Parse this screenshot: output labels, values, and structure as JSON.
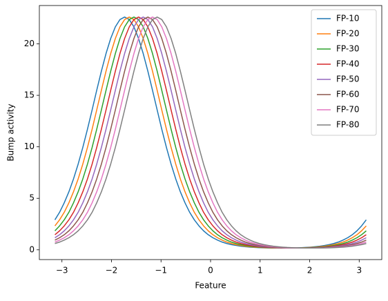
{
  "chart_data": {
    "type": "line",
    "xlabel": "Feature",
    "ylabel": "Bump activity",
    "x": [
      -3.142,
      -3.048,
      -2.954,
      -2.86,
      -2.767,
      -2.673,
      -2.579,
      -2.485,
      -2.391,
      -2.298,
      -2.204,
      -2.11,
      -2.016,
      -1.922,
      -1.829,
      -1.735,
      -1.641,
      -1.547,
      -1.454,
      -1.36,
      -1.266,
      -1.172,
      -1.078,
      -0.985,
      -0.891,
      -0.797,
      -0.703,
      -0.61,
      -0.516,
      -0.422,
      -0.328,
      -0.234,
      -0.141,
      -0.047,
      0.047,
      0.141,
      0.234,
      0.328,
      0.422,
      0.516,
      0.61,
      0.703,
      0.797,
      0.891,
      0.985,
      1.078,
      1.172,
      1.266,
      1.36,
      1.454,
      1.547,
      1.641,
      1.735,
      1.829,
      1.922,
      2.016,
      2.11,
      2.204,
      2.298,
      2.391,
      2.485,
      2.579,
      2.673,
      2.767,
      2.86,
      2.954,
      3.048,
      3.142
    ],
    "series": [
      {
        "name": "FP-10",
        "color": "#1f77b4",
        "values": [
          2.91,
          3.64,
          4.56,
          5.63,
          6.88,
          8.32,
          9.94,
          11.71,
          13.58,
          15.49,
          17.35,
          19.06,
          20.52,
          21.65,
          22.36,
          22.6,
          22.36,
          21.65,
          20.52,
          19.06,
          17.35,
          15.49,
          13.58,
          11.71,
          9.94,
          8.32,
          6.88,
          5.63,
          4.56,
          3.64,
          2.91,
          2.32,
          1.84,
          1.46,
          1.17,
          0.94,
          0.75,
          0.61,
          0.5,
          0.42,
          0.35,
          0.3,
          0.26,
          0.23,
          0.21,
          0.19,
          0.18,
          0.17,
          0.17,
          0.17,
          0.17,
          0.18,
          0.19,
          0.21,
          0.23,
          0.26,
          0.3,
          0.35,
          0.42,
          0.5,
          0.61,
          0.75,
          0.94,
          1.17,
          1.46,
          1.84,
          2.32,
          2.91
        ]
      },
      {
        "name": "FP-20",
        "color": "#ff7f0e",
        "values": [
          2.32,
          2.91,
          3.64,
          4.56,
          5.63,
          6.88,
          8.32,
          9.94,
          11.71,
          13.58,
          15.49,
          17.35,
          19.06,
          20.52,
          21.65,
          22.36,
          22.6,
          22.36,
          21.65,
          20.52,
          19.06,
          17.35,
          15.49,
          13.58,
          11.71,
          9.94,
          8.32,
          6.88,
          5.63,
          4.56,
          3.64,
          2.91,
          2.32,
          1.84,
          1.46,
          1.17,
          0.94,
          0.75,
          0.61,
          0.5,
          0.42,
          0.35,
          0.3,
          0.26,
          0.23,
          0.21,
          0.19,
          0.18,
          0.17,
          0.17,
          0.17,
          0.17,
          0.18,
          0.19,
          0.21,
          0.23,
          0.26,
          0.3,
          0.35,
          0.42,
          0.5,
          0.61,
          0.75,
          0.94,
          1.17,
          1.46,
          1.84,
          2.32
        ]
      },
      {
        "name": "FP-30",
        "color": "#2ca02c",
        "values": [
          1.84,
          2.32,
          2.91,
          3.64,
          4.56,
          5.63,
          6.88,
          8.32,
          9.94,
          11.71,
          13.58,
          15.49,
          17.35,
          19.06,
          20.52,
          21.65,
          22.36,
          22.6,
          22.36,
          21.65,
          20.52,
          19.06,
          17.35,
          15.49,
          13.58,
          11.71,
          9.94,
          8.32,
          6.88,
          5.63,
          4.56,
          3.64,
          2.91,
          2.32,
          1.84,
          1.46,
          1.17,
          0.94,
          0.75,
          0.61,
          0.5,
          0.42,
          0.35,
          0.3,
          0.26,
          0.23,
          0.21,
          0.19,
          0.18,
          0.17,
          0.17,
          0.17,
          0.17,
          0.18,
          0.19,
          0.21,
          0.23,
          0.26,
          0.3,
          0.35,
          0.42,
          0.5,
          0.61,
          0.75,
          0.94,
          1.17,
          1.46,
          1.84
        ]
      },
      {
        "name": "FP-40",
        "color": "#d62728",
        "values": [
          1.46,
          1.84,
          2.32,
          2.91,
          3.64,
          4.56,
          5.63,
          6.88,
          8.32,
          9.94,
          11.71,
          13.58,
          15.49,
          17.35,
          19.06,
          20.52,
          21.65,
          22.36,
          22.6,
          22.36,
          21.65,
          20.52,
          19.06,
          17.35,
          15.49,
          13.58,
          11.71,
          9.94,
          8.32,
          6.88,
          5.63,
          4.56,
          3.64,
          2.91,
          2.32,
          1.84,
          1.46,
          1.17,
          0.94,
          0.75,
          0.61,
          0.5,
          0.42,
          0.35,
          0.3,
          0.26,
          0.23,
          0.21,
          0.19,
          0.18,
          0.17,
          0.17,
          0.17,
          0.17,
          0.18,
          0.19,
          0.21,
          0.23,
          0.26,
          0.3,
          0.35,
          0.42,
          0.5,
          0.61,
          0.75,
          0.94,
          1.17,
          1.46
        ]
      },
      {
        "name": "FP-50",
        "color": "#9467bd",
        "values": [
          1.17,
          1.46,
          1.84,
          2.32,
          2.91,
          3.64,
          4.56,
          5.63,
          6.88,
          8.32,
          9.94,
          11.71,
          13.58,
          15.49,
          17.35,
          19.06,
          20.52,
          21.65,
          22.36,
          22.6,
          22.36,
          21.65,
          20.52,
          19.06,
          17.35,
          15.49,
          13.58,
          11.71,
          9.94,
          8.32,
          6.88,
          5.63,
          4.56,
          3.64,
          2.91,
          2.32,
          1.84,
          1.46,
          1.17,
          0.94,
          0.75,
          0.61,
          0.5,
          0.42,
          0.35,
          0.3,
          0.26,
          0.23,
          0.21,
          0.19,
          0.18,
          0.17,
          0.17,
          0.17,
          0.17,
          0.18,
          0.19,
          0.21,
          0.23,
          0.26,
          0.3,
          0.35,
          0.42,
          0.5,
          0.61,
          0.75,
          0.94,
          1.17
        ]
      },
      {
        "name": "FP-60",
        "color": "#8c564b",
        "values": [
          0.94,
          1.17,
          1.46,
          1.84,
          2.32,
          2.91,
          3.64,
          4.56,
          5.63,
          6.88,
          8.32,
          9.94,
          11.71,
          13.58,
          15.49,
          17.35,
          19.06,
          20.52,
          21.65,
          22.36,
          22.6,
          22.36,
          21.65,
          20.52,
          19.06,
          17.35,
          15.49,
          13.58,
          11.71,
          9.94,
          8.32,
          6.88,
          5.63,
          4.56,
          3.64,
          2.91,
          2.32,
          1.84,
          1.46,
          1.17,
          0.94,
          0.75,
          0.61,
          0.5,
          0.42,
          0.35,
          0.3,
          0.26,
          0.23,
          0.21,
          0.19,
          0.18,
          0.17,
          0.17,
          0.17,
          0.17,
          0.18,
          0.19,
          0.21,
          0.23,
          0.26,
          0.3,
          0.35,
          0.42,
          0.5,
          0.61,
          0.75,
          0.94
        ]
      },
      {
        "name": "FP-70",
        "color": "#e377c2",
        "values": [
          0.75,
          0.94,
          1.17,
          1.46,
          1.84,
          2.32,
          2.91,
          3.64,
          4.56,
          5.63,
          6.88,
          8.32,
          9.94,
          11.71,
          13.58,
          15.49,
          17.35,
          19.06,
          20.52,
          21.65,
          22.36,
          22.6,
          22.36,
          21.65,
          20.52,
          19.06,
          17.35,
          15.49,
          13.58,
          11.71,
          9.94,
          8.32,
          6.88,
          5.63,
          4.56,
          3.64,
          2.91,
          2.32,
          1.84,
          1.46,
          1.17,
          0.94,
          0.75,
          0.61,
          0.5,
          0.42,
          0.35,
          0.3,
          0.26,
          0.23,
          0.21,
          0.19,
          0.18,
          0.17,
          0.17,
          0.17,
          0.17,
          0.18,
          0.19,
          0.21,
          0.23,
          0.26,
          0.3,
          0.35,
          0.42,
          0.5,
          0.61,
          0.75
        ]
      },
      {
        "name": "FP-80",
        "color": "#7f7f7f",
        "values": [
          0.61,
          0.75,
          0.94,
          1.17,
          1.46,
          1.84,
          2.32,
          2.91,
          3.64,
          4.56,
          5.63,
          6.88,
          8.32,
          9.94,
          11.71,
          13.58,
          15.49,
          17.35,
          19.06,
          20.52,
          21.65,
          22.36,
          22.6,
          22.36,
          21.65,
          20.52,
          19.06,
          17.35,
          15.49,
          13.58,
          11.71,
          9.94,
          8.32,
          6.88,
          5.63,
          4.56,
          3.64,
          2.91,
          2.32,
          1.84,
          1.46,
          1.17,
          0.94,
          0.75,
          0.61,
          0.5,
          0.42,
          0.35,
          0.3,
          0.26,
          0.23,
          0.21,
          0.19,
          0.18,
          0.17,
          0.17,
          0.17,
          0.17,
          0.18,
          0.19,
          0.21,
          0.23,
          0.26,
          0.3,
          0.35,
          0.42,
          0.5,
          0.61
        ]
      }
    ],
    "xlim": [
      -3.456,
      3.456
    ],
    "xticks": [
      {
        "value": -3,
        "label": "−3"
      },
      {
        "value": -2,
        "label": "−2"
      },
      {
        "value": -1,
        "label": "−1"
      },
      0,
      1,
      2,
      3
    ],
    "ylim": [
      -0.95,
      23.72
    ],
    "yticks": [
      0,
      5,
      10,
      15,
      20
    ],
    "grid": false,
    "legend": "upper right"
  }
}
